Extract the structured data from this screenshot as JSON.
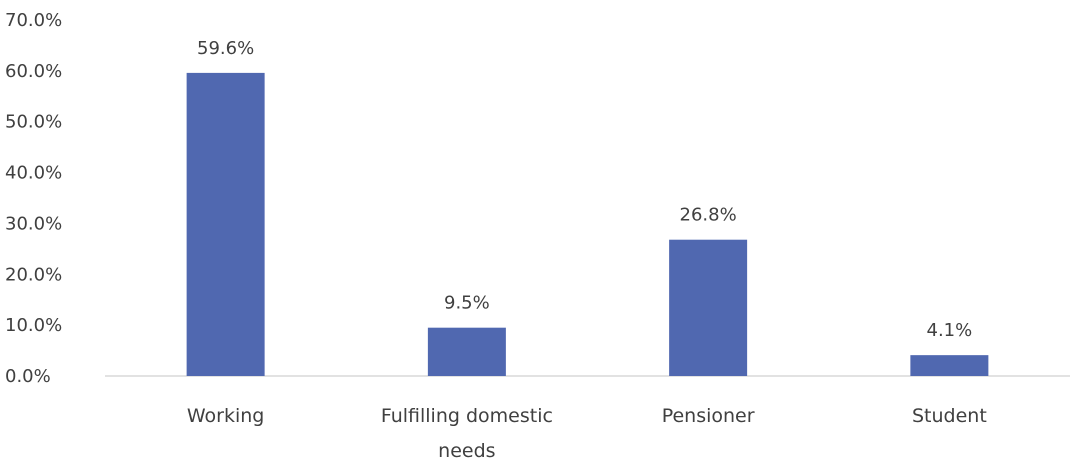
{
  "chart_data": {
    "type": "bar",
    "title": "",
    "xlabel": "",
    "ylabel": "",
    "categories": [
      [
        "Working"
      ],
      [
        "Fulfilling domestic",
        "needs"
      ],
      [
        "Pensioner"
      ],
      [
        "Student"
      ]
    ],
    "values": [
      59.6,
      9.5,
      26.8,
      4.1
    ],
    "value_labels": [
      "59.6%",
      "9.5%",
      "26.8%",
      "4.1%"
    ],
    "ylim": [
      0,
      70
    ],
    "yticks": [
      {
        "value": 0,
        "label": "0.0%"
      },
      {
        "value": 10,
        "label": "10.0%"
      },
      {
        "value": 20,
        "label": "20.0%"
      },
      {
        "value": 30,
        "label": "30.0%"
      },
      {
        "value": 40,
        "label": "40.0%"
      },
      {
        "value": 50,
        "label": "50.0%"
      },
      {
        "value": 60,
        "label": "60.0%"
      },
      {
        "value": 70,
        "label": "70.0%"
      }
    ],
    "grid": false,
    "legend": "none",
    "colors": {
      "bar": "#5068b0",
      "axis_line": "#d9d9d9",
      "text": "#404040"
    }
  }
}
